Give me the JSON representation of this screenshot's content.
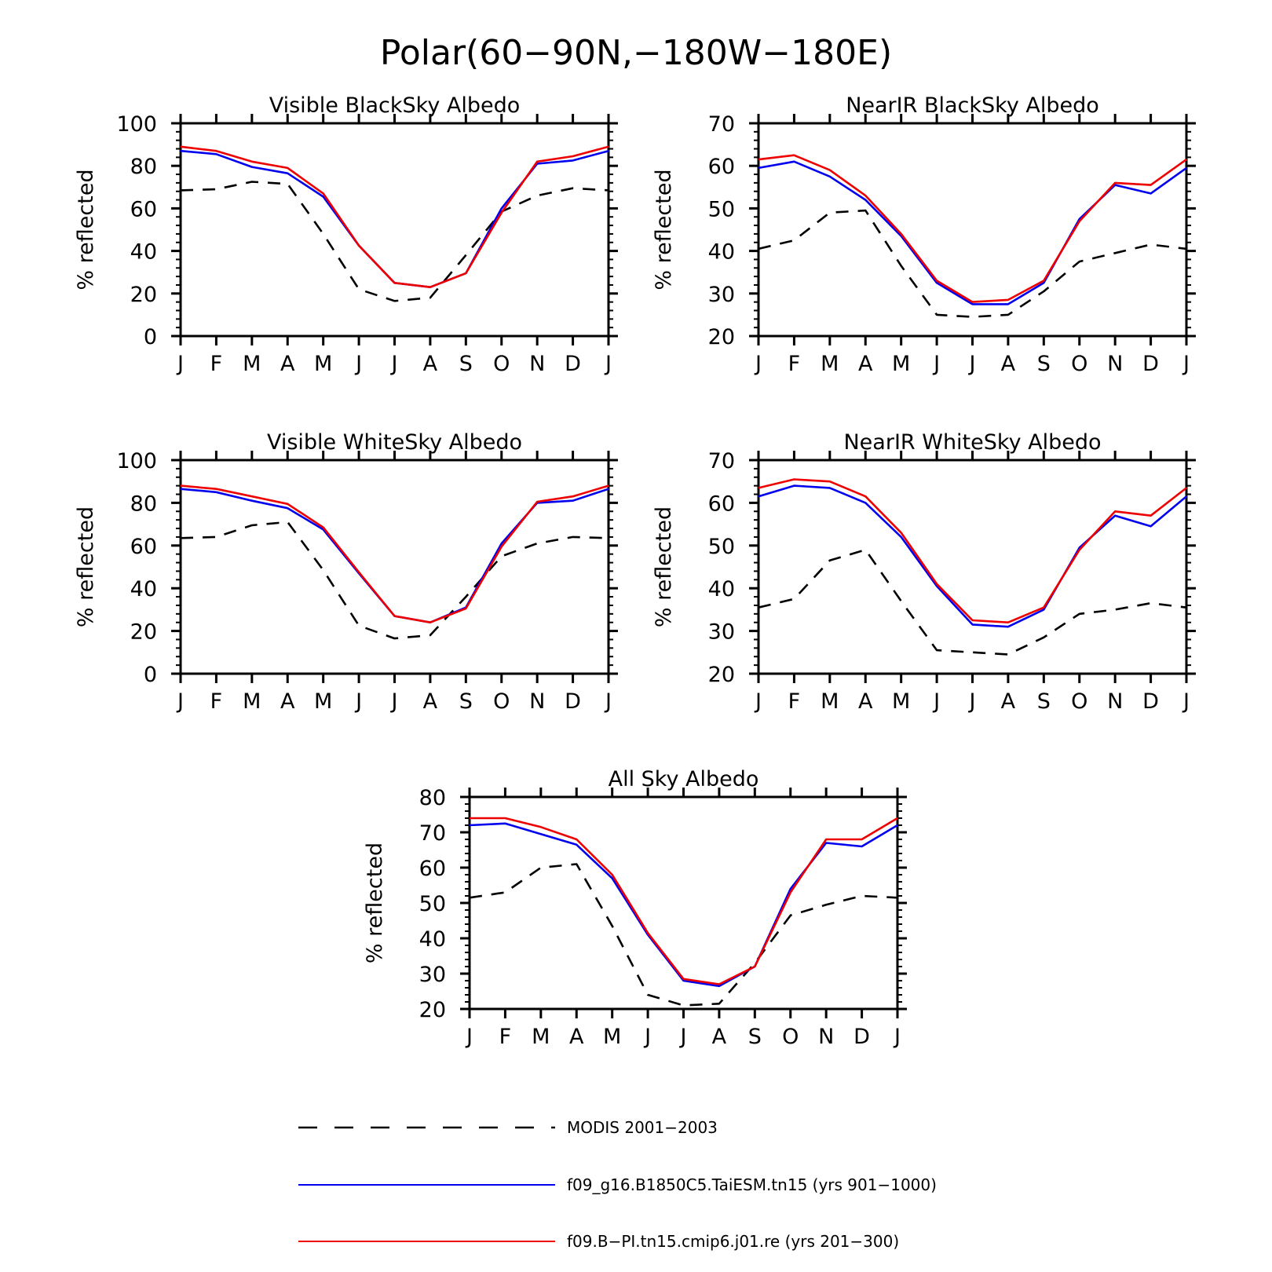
{
  "page_title": "Polar(60−90N,−180W−180E)",
  "colors": {
    "modis": "#000000",
    "taiesm": "#0000ee",
    "cmip6": "#ee0000",
    "axis": "#000000"
  },
  "legend": [
    {
      "label": "MODIS 2001−2003",
      "style": "dashed",
      "color_key": "modis"
    },
    {
      "label": "f09_g16.B1850C5.TaiESM.tn15 (yrs 901−1000)",
      "style": "solid",
      "color_key": "taiesm"
    },
    {
      "label": "f09.B−PI.tn15.cmip6.j01.re (yrs 201−300)",
      "style": "solid",
      "color_key": "cmip6"
    }
  ],
  "chart_data": [
    {
      "type": "line",
      "title": "Visible BlackSky Albedo",
      "ylabel": "% reflected",
      "ylim": [
        0,
        100
      ],
      "yticks": [
        0,
        20,
        40,
        60,
        80,
        100
      ],
      "categories": [
        "J",
        "F",
        "M",
        "A",
        "M",
        "J",
        "J",
        "A",
        "S",
        "O",
        "N",
        "D",
        "J"
      ],
      "series": [
        {
          "color_key": "modis",
          "dashed": true,
          "values": [
            68.5,
            69,
            72.5,
            71.5,
            48,
            22,
            16.5,
            18,
            38,
            58.5,
            66,
            69.5,
            68.5
          ]
        },
        {
          "color_key": "taiesm",
          "dashed": false,
          "values": [
            87,
            85.5,
            79.5,
            76.5,
            65.5,
            42.5,
            25,
            23,
            29.5,
            60,
            81,
            82.5,
            87
          ]
        },
        {
          "color_key": "cmip6",
          "dashed": false,
          "values": [
            89,
            87,
            82,
            79,
            67,
            42.5,
            25,
            23,
            29.5,
            58,
            82,
            84.5,
            89
          ]
        }
      ]
    },
    {
      "type": "line",
      "title": "NearIR BlackSky Albedo",
      "ylabel": "% reflected",
      "ylim": [
        20,
        70
      ],
      "yticks": [
        20,
        30,
        40,
        50,
        60,
        70
      ],
      "categories": [
        "J",
        "F",
        "M",
        "A",
        "M",
        "J",
        "J",
        "A",
        "S",
        "O",
        "N",
        "D",
        "J"
      ],
      "series": [
        {
          "color_key": "modis",
          "dashed": true,
          "values": [
            40.5,
            42.5,
            49,
            49.5,
            36.5,
            25,
            24.5,
            25,
            30.5,
            37.5,
            39.5,
            41.5,
            40.5
          ]
        },
        {
          "color_key": "taiesm",
          "dashed": false,
          "values": [
            59.5,
            61,
            57.5,
            52,
            43.5,
            32.5,
            27.5,
            27.5,
            32.5,
            47.5,
            55.5,
            53.5,
            59.5
          ]
        },
        {
          "color_key": "cmip6",
          "dashed": false,
          "values": [
            61.5,
            62.5,
            59,
            53,
            44,
            33,
            28,
            28.5,
            33,
            47,
            56,
            55.5,
            61.5
          ]
        }
      ]
    },
    {
      "type": "line",
      "title": "Visible WhiteSky Albedo",
      "ylabel": "% reflected",
      "ylim": [
        0,
        100
      ],
      "yticks": [
        0,
        20,
        40,
        60,
        80,
        100
      ],
      "categories": [
        "J",
        "F",
        "M",
        "A",
        "M",
        "J",
        "J",
        "A",
        "S",
        "O",
        "N",
        "D",
        "J"
      ],
      "series": [
        {
          "color_key": "modis",
          "dashed": true,
          "values": [
            63.5,
            64,
            69.5,
            71,
            48.5,
            22.5,
            16.5,
            18,
            36,
            55,
            61,
            64,
            63.5
          ]
        },
        {
          "color_key": "taiesm",
          "dashed": false,
          "values": [
            86.5,
            85,
            81,
            77.5,
            67.5,
            47,
            27,
            24,
            31,
            61,
            80,
            81,
            86.5
          ]
        },
        {
          "color_key": "cmip6",
          "dashed": false,
          "values": [
            88,
            86.5,
            83,
            79.5,
            68.5,
            47.5,
            27,
            24,
            30.5,
            59.5,
            80.5,
            83,
            88
          ]
        }
      ]
    },
    {
      "type": "line",
      "title": "NearIR WhiteSky Albedo",
      "ylabel": "% reflected",
      "ylim": [
        20,
        70
      ],
      "yticks": [
        20,
        30,
        40,
        50,
        60,
        70
      ],
      "categories": [
        "J",
        "F",
        "M",
        "A",
        "M",
        "J",
        "J",
        "A",
        "S",
        "O",
        "N",
        "D",
        "J"
      ],
      "series": [
        {
          "color_key": "modis",
          "dashed": true,
          "values": [
            35.5,
            37.5,
            46.5,
            49,
            37,
            25.5,
            25,
            24.5,
            28.5,
            34,
            35,
            36.5,
            35.5
          ]
        },
        {
          "color_key": "taiesm",
          "dashed": false,
          "values": [
            61.5,
            64,
            63.5,
            60,
            52,
            40.5,
            31.5,
            31,
            35,
            49.5,
            57,
            54.5,
            61.5
          ]
        },
        {
          "color_key": "cmip6",
          "dashed": false,
          "values": [
            63.5,
            65.5,
            65,
            61.5,
            53,
            41,
            32.5,
            32,
            35.5,
            49,
            58,
            57,
            63.5
          ]
        }
      ]
    },
    {
      "type": "line",
      "title": "All Sky Albedo",
      "ylabel": "% reflected",
      "ylim": [
        20,
        80
      ],
      "yticks": [
        20,
        30,
        40,
        50,
        60,
        70,
        80
      ],
      "categories": [
        "J",
        "F",
        "M",
        "A",
        "M",
        "J",
        "J",
        "A",
        "S",
        "O",
        "N",
        "D",
        "J"
      ],
      "series": [
        {
          "color_key": "modis",
          "dashed": true,
          "values": [
            51.5,
            53,
            60,
            61,
            43.5,
            24,
            21,
            21.5,
            33,
            46.5,
            49.5,
            52,
            51.5
          ]
        },
        {
          "color_key": "taiesm",
          "dashed": false,
          "values": [
            72,
            72.5,
            69.5,
            66.5,
            57,
            41,
            28,
            26.5,
            32,
            54,
            67,
            66,
            72
          ]
        },
        {
          "color_key": "cmip6",
          "dashed": false,
          "values": [
            74,
            74,
            71.5,
            68,
            58,
            41.5,
            28.5,
            27,
            32,
            53,
            68,
            68,
            74
          ]
        }
      ]
    }
  ]
}
